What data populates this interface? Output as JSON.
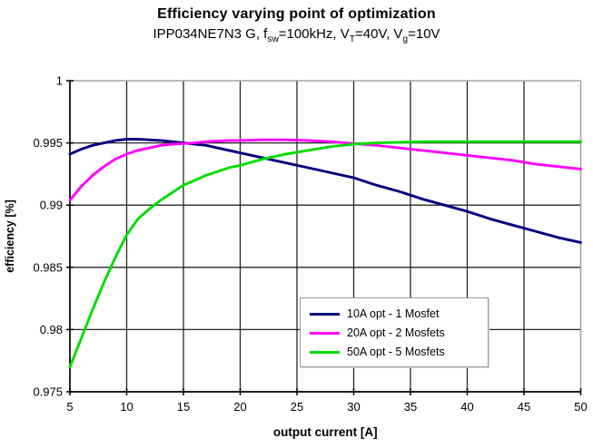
{
  "header": {
    "title": "Efficiency varying point of optimization",
    "subtitle_parts": {
      "p1": "IPP034NE7N3 G, f",
      "s1": "sw",
      "p2": "=100kHz, V",
      "s2": "T",
      "p3": "=40V, V",
      "s3": "g",
      "p4": "=10V"
    }
  },
  "chart_data": {
    "type": "line",
    "title": "Efficiency varying point of optimization",
    "subtitle": "IPP034NE7N3 G, fsw=100kHz, VT=40V, Vg=10V",
    "xlabel": "output current [A]",
    "ylabel": "efficiency [%]",
    "xlim": [
      5,
      50
    ],
    "ylim": [
      0.975,
      1.0
    ],
    "grid": true,
    "legend_position": "inside bottom-center",
    "x_ticks": {
      "values": [
        5,
        10,
        15,
        20,
        25,
        30,
        35,
        40,
        45,
        50
      ],
      "labels": [
        "5",
        "10",
        "15",
        "20",
        "25",
        "30",
        "35",
        "40",
        "45",
        "50"
      ]
    },
    "y_ticks": {
      "values": [
        0.975,
        0.98,
        0.985,
        0.99,
        0.995,
        1.0
      ],
      "labels": [
        "0.975",
        "0.98",
        "0.985",
        "0.99",
        "0.995",
        "1"
      ]
    },
    "colors": {
      "gridline": "#262626",
      "axis": "#000000",
      "plot_border": "#a6a6a6",
      "background": "#ffffff"
    },
    "series": [
      {
        "label": "10A opt - 1 Mosfet",
        "color": "#00007d",
        "points": [
          [
            5,
            0.9941
          ],
          [
            6,
            0.9945
          ],
          [
            7,
            0.9948
          ],
          [
            8,
            0.995
          ],
          [
            9,
            0.9952
          ],
          [
            10,
            0.9953
          ],
          [
            11,
            0.9953
          ],
          [
            12,
            0.99525
          ],
          [
            13,
            0.9952
          ],
          [
            14,
            0.9951
          ],
          [
            15,
            0.995
          ],
          [
            16,
            0.9949
          ],
          [
            17,
            0.9948
          ],
          [
            18,
            0.9946
          ],
          [
            19,
            0.9944
          ],
          [
            20,
            0.9942
          ],
          [
            22,
            0.9938
          ],
          [
            24,
            0.9934
          ],
          [
            26,
            0.993
          ],
          [
            28,
            0.9926
          ],
          [
            30,
            0.9922
          ],
          [
            32,
            0.9916
          ],
          [
            34,
            0.9911
          ],
          [
            36,
            0.9905
          ],
          [
            38,
            0.99
          ],
          [
            40,
            0.9895
          ],
          [
            42,
            0.9889
          ],
          [
            44,
            0.9884
          ],
          [
            46,
            0.9879
          ],
          [
            48,
            0.9874
          ],
          [
            50,
            0.987
          ]
        ]
      },
      {
        "label": "20A opt - 2 Mosfets",
        "color": "#ff00ff",
        "points": [
          [
            5,
            0.9904
          ],
          [
            6,
            0.9915
          ],
          [
            7,
            0.9924
          ],
          [
            8,
            0.9931
          ],
          [
            9,
            0.9937
          ],
          [
            10,
            0.9941
          ],
          [
            11,
            0.9944
          ],
          [
            12,
            0.9946
          ],
          [
            13,
            0.9948
          ],
          [
            14,
            0.9949
          ],
          [
            15,
            0.99495
          ],
          [
            16,
            0.995
          ],
          [
            17,
            0.9951
          ],
          [
            18,
            0.99515
          ],
          [
            19,
            0.9952
          ],
          [
            20,
            0.9952
          ],
          [
            22,
            0.99525
          ],
          [
            24,
            0.99525
          ],
          [
            26,
            0.9952
          ],
          [
            28,
            0.9951
          ],
          [
            30,
            0.99495
          ],
          [
            32,
            0.9948
          ],
          [
            34,
            0.9946
          ],
          [
            36,
            0.9944
          ],
          [
            38,
            0.9942
          ],
          [
            40,
            0.994
          ],
          [
            42,
            0.9938
          ],
          [
            44,
            0.9936
          ],
          [
            46,
            0.9933
          ],
          [
            48,
            0.9931
          ],
          [
            50,
            0.9929
          ]
        ]
      },
      {
        "label": "50A opt - 5 Mosfets",
        "color": "#00dd00",
        "points": [
          [
            5,
            0.977
          ],
          [
            6,
            0.9793
          ],
          [
            7,
            0.9816
          ],
          [
            8,
            0.9838
          ],
          [
            9,
            0.9858
          ],
          [
            10,
            0.9876
          ],
          [
            11,
            0.9889
          ],
          [
            12,
            0.9897
          ],
          [
            13,
            0.9904
          ],
          [
            14,
            0.991
          ],
          [
            15,
            0.9916
          ],
          [
            16,
            0.992
          ],
          [
            17,
            0.9924
          ],
          [
            18,
            0.9927
          ],
          [
            19,
            0.993
          ],
          [
            20,
            0.9932
          ],
          [
            22,
            0.9937
          ],
          [
            24,
            0.9941
          ],
          [
            26,
            0.9944
          ],
          [
            28,
            0.9947
          ],
          [
            30,
            0.9949
          ],
          [
            32,
            0.995
          ],
          [
            34,
            0.99505
          ],
          [
            36,
            0.9951
          ],
          [
            38,
            0.9951
          ],
          [
            40,
            0.9951
          ],
          [
            42,
            0.9951
          ],
          [
            44,
            0.9951
          ],
          [
            46,
            0.9951
          ],
          [
            48,
            0.9951
          ],
          [
            50,
            0.9951
          ]
        ]
      }
    ]
  }
}
